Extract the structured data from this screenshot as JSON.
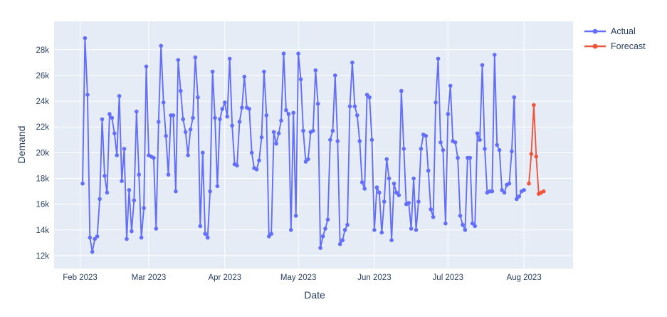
{
  "page": {
    "background": "#ffffff"
  },
  "axes": {
    "x_title": "Date",
    "y_title": "Demand"
  },
  "legend": {
    "items": [
      {
        "label": "Actual",
        "color": "#636EFA"
      },
      {
        "label": "Forecast",
        "color": "#EF553B"
      }
    ]
  },
  "chart_data": {
    "type": "line",
    "title": "",
    "xlabel": "Date",
    "ylabel": "Demand",
    "legend_position": "top-right",
    "grid": true,
    "plot_bg": "#e5ecf6",
    "grid_color": "#ffffff",
    "text_color": "#2a3f5f",
    "marker_mode": "lines+markers",
    "xlim_days": [
      -10.6,
      201.0
    ],
    "ylim": [
      11.0,
      30.2
    ],
    "x_ticks": [
      {
        "day": 0,
        "label": "Feb 2023"
      },
      {
        "day": 28,
        "label": "Mar 2023"
      },
      {
        "day": 59,
        "label": "Apr 2023"
      },
      {
        "day": 89,
        "label": "May 2023"
      },
      {
        "day": 120,
        "label": "Jun 2023"
      },
      {
        "day": 150,
        "label": "Jul 2023"
      },
      {
        "day": 181,
        "label": "Aug 2023"
      }
    ],
    "y_ticks": [
      {
        "value": 12,
        "label": "12k"
      },
      {
        "value": 14,
        "label": "14k"
      },
      {
        "value": 16,
        "label": "16k"
      },
      {
        "value": 18,
        "label": "18k"
      },
      {
        "value": 20,
        "label": "20k"
      },
      {
        "value": 22,
        "label": "22k"
      },
      {
        "value": 24,
        "label": "24k"
      },
      {
        "value": 26,
        "label": "26k"
      },
      {
        "value": 28,
        "label": "28k"
      }
    ],
    "y_unit": "k (demand units)",
    "x_unit": "days since 2023-02-01, daily cadence",
    "series": [
      {
        "name": "Actual",
        "color": "#636EFA",
        "start_day": 1,
        "values": [
          17.6,
          28.9,
          24.5,
          13.4,
          12.3,
          13.3,
          13.5,
          16.4,
          22.6,
          18.2,
          16.9,
          23.0,
          22.7,
          21.5,
          19.8,
          24.4,
          17.8,
          20.3,
          13.3,
          17.1,
          13.9,
          16.3,
          23.2,
          18.3,
          13.4,
          15.7,
          26.7,
          19.8,
          19.7,
          19.6,
          14.1,
          22.4,
          28.3,
          23.9,
          21.3,
          18.3,
          22.9,
          22.9,
          17.0,
          27.2,
          24.8,
          22.6,
          21.6,
          19.8,
          21.8,
          22.7,
          27.4,
          24.3,
          14.3,
          20.0,
          13.7,
          13.4,
          17.0,
          26.3,
          22.7,
          17.4,
          22.6,
          23.4,
          23.9,
          22.8,
          27.3,
          22.1,
          19.1,
          19.0,
          22.4,
          23.5,
          25.9,
          23.5,
          23.4,
          20.0,
          18.8,
          18.7,
          19.4,
          21.2,
          26.3,
          22.9,
          13.5,
          13.7,
          21.6,
          20.7,
          21.5,
          22.5,
          27.7,
          23.3,
          23.0,
          14.0,
          23.1,
          15.1,
          27.7,
          25.7,
          21.7,
          19.3,
          19.5,
          21.6,
          21.7,
          26.4,
          23.8,
          12.6,
          13.5,
          14.1,
          14.8,
          21.0,
          21.7,
          26.0,
          20.9,
          12.9,
          13.2,
          14.0,
          14.4,
          23.6,
          27.0,
          23.6,
          22.9,
          20.9,
          17.7,
          17.2,
          24.5,
          24.3,
          21.0,
          14.0,
          17.3,
          16.9,
          13.8,
          16.2,
          19.5,
          18.0,
          13.2,
          17.6,
          16.9,
          16.7,
          24.8,
          20.3,
          16.0,
          16.1,
          14.1,
          18.0,
          14.0,
          16.2,
          20.3,
          21.4,
          21.3,
          18.6,
          15.6,
          15.0,
          23.9,
          27.3,
          20.8,
          20.2,
          14.5,
          23.0,
          25.2,
          20.9,
          20.8,
          19.6,
          15.1,
          14.4,
          14.0,
          19.6,
          19.6,
          14.5,
          14.3,
          21.5,
          21.0,
          26.8,
          20.3,
          16.9,
          17.0,
          17.0,
          27.6,
          20.6,
          20.2,
          17.1,
          16.9,
          17.5,
          17.6,
          20.1,
          24.3,
          16.4,
          16.6,
          17.0,
          17.1
        ]
      },
      {
        "name": "Forecast",
        "color": "#EF553B",
        "start_day": 183,
        "values": [
          17.6,
          19.9,
          23.7,
          19.7,
          16.8,
          16.9,
          17.0
        ]
      }
    ]
  }
}
